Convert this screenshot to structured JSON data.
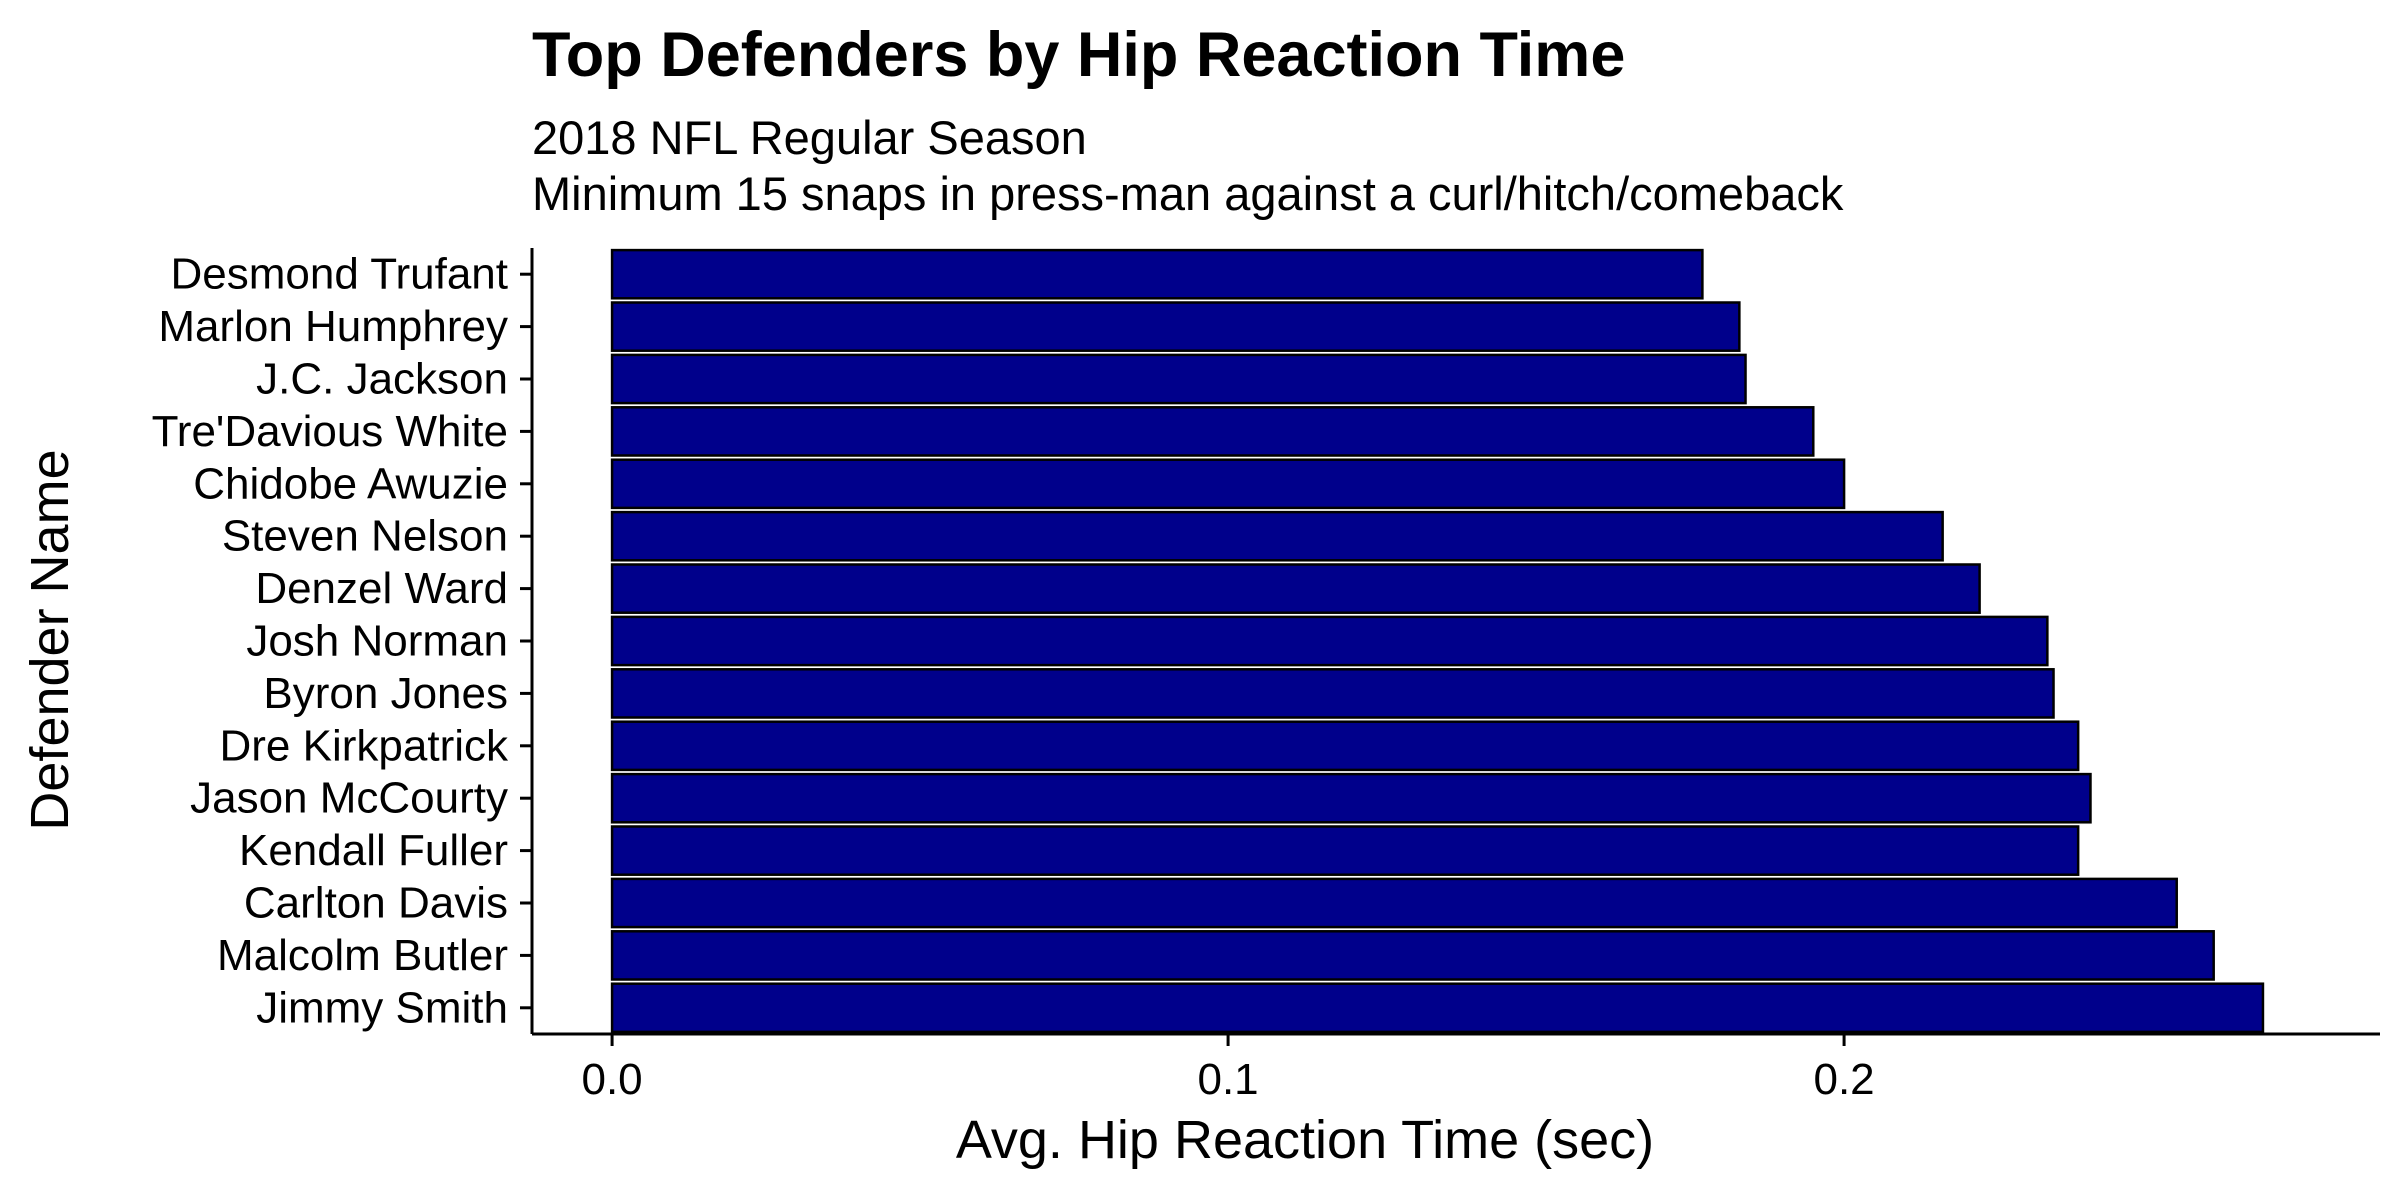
{
  "chart_data": {
    "type": "bar",
    "orientation": "horizontal",
    "title": "Top Defenders by Hip Reaction Time",
    "subtitle_lines": [
      "2018 NFL Regular Season",
      "Minimum 15 snaps in press-man against a curl/hitch/comeback"
    ],
    "xlabel": "Avg. Hip Reaction Time (sec)",
    "ylabel": "Defender Name",
    "xlim": [
      -0.013,
      0.287
    ],
    "x_ticks": [
      0.0,
      0.1,
      0.2
    ],
    "x_tick_labels": [
      "0.0",
      "0.1",
      "0.2"
    ],
    "categories": [
      "Desmond Trufant",
      "Marlon Humphrey",
      "J.C. Jackson",
      "Tre'Davious White",
      "Chidobe Awuzie",
      "Steven Nelson",
      "Denzel Ward",
      "Josh Norman",
      "Byron Jones",
      "Dre Kirkpatrick",
      "Jason McCourty",
      "Kendall Fuller",
      "Carlton Davis",
      "Malcolm Butler",
      "Jimmy Smith"
    ],
    "values": [
      0.177,
      0.183,
      0.184,
      0.195,
      0.2,
      0.216,
      0.222,
      0.233,
      0.234,
      0.238,
      0.24,
      0.238,
      0.254,
      0.26,
      0.268
    ],
    "bar_color": "#00008B",
    "bar_edge_color": "#000000",
    "grid": false,
    "legend": "none"
  }
}
